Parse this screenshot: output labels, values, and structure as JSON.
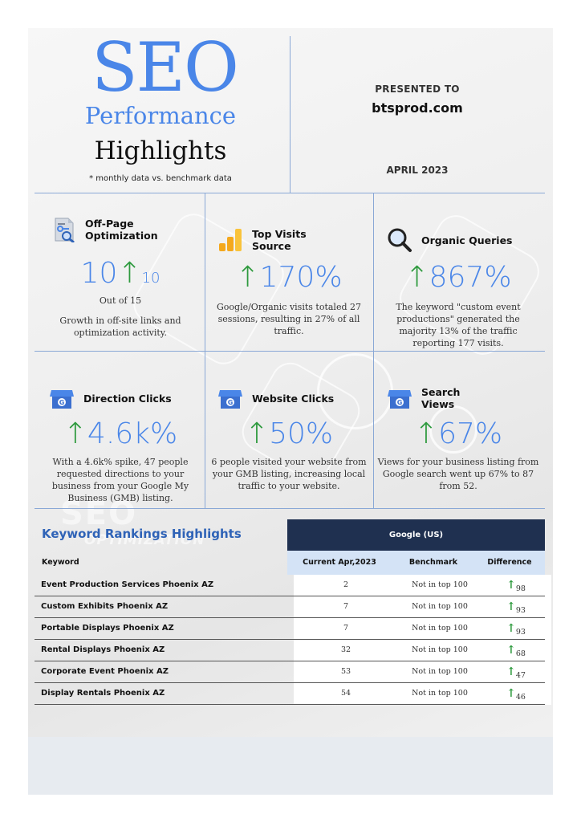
{
  "header": {
    "title_seo": "SEO",
    "title_performance": "Performance",
    "title_highlights": "Highlights",
    "note": "* monthly data vs. benchmark data",
    "presented_to": "PRESENTED TO",
    "client": "btsprod.com",
    "date": "APRIL 2023"
  },
  "metrics": [
    {
      "title_line1": "Off-Page",
      "title_line2": "Optimization",
      "value": "10",
      "value_suffix": "10",
      "sub": "Out of 15",
      "text": "Growth in off-site links and optimization activity.",
      "icon": "seo-document-icon"
    },
    {
      "title_line1": "Top Visits",
      "title_line2": "Source",
      "value": "170%",
      "text": "Google/Organic visits totaled 27 sessions, resulting in 27% of all traffic.",
      "icon": "google-analytics-icon"
    },
    {
      "title_line1": "Organic Queries",
      "value": "867%",
      "text": "The keyword \"custom event productions\" generated the majority 13% of the traffic reporting 177 visits.",
      "icon": "magnifier-icon"
    },
    {
      "title_line1": "Direction Clicks",
      "value": "4.6k%",
      "text": "With a 4.6k% spike, 47 people requested directions to your business from your Google My Business (GMB) listing.",
      "icon": "google-my-business-icon"
    },
    {
      "title_line1": "Website Clicks",
      "value": "50%",
      "text": "6 people visited your website from your GMB listing, increasing local traffic to your website.",
      "icon": "google-my-business-icon"
    },
    {
      "title_line1": "Search",
      "title_line2": "Views",
      "value": "67%",
      "text": "Views for your business listing from Google search went up 67% to 87 from 52.",
      "icon": "google-my-business-icon"
    }
  ],
  "keywords": {
    "title": "Keyword Rankings Highlights",
    "group_header": "Google (US)",
    "col_keyword": "Keyword",
    "col_current": "Current Apr,2023",
    "col_benchmark": "Benchmark",
    "col_difference": "Difference",
    "rows": [
      {
        "keyword": "Event Production Services Phoenix AZ",
        "current": "2",
        "benchmark": "Not in top 100",
        "difference": "98"
      },
      {
        "keyword": "Custom Exhibits Phoenix AZ",
        "current": "7",
        "benchmark": "Not in top 100",
        "difference": "93"
      },
      {
        "keyword": "Portable Displays Phoenix AZ",
        "current": "7",
        "benchmark": "Not in top 100",
        "difference": "93"
      },
      {
        "keyword": "Rental Displays Phoenix AZ",
        "current": "32",
        "benchmark": "Not in top 100",
        "difference": "68"
      },
      {
        "keyword": "Corporate Event Phoenix AZ",
        "current": "53",
        "benchmark": "Not in top 100",
        "difference": "47"
      },
      {
        "keyword": "Display Rentals Phoenix AZ",
        "current": "54",
        "benchmark": "Not in top 100",
        "difference": "46"
      }
    ]
  },
  "background": {
    "ghost_text": "SEO",
    "ghost_sub": "OPTIMIZATION"
  },
  "colors": {
    "accent_blue": "#4a86e8",
    "up_green": "#2e9a3e",
    "table_header": "#1f3050",
    "table_subheader": "#d4e3f6"
  }
}
